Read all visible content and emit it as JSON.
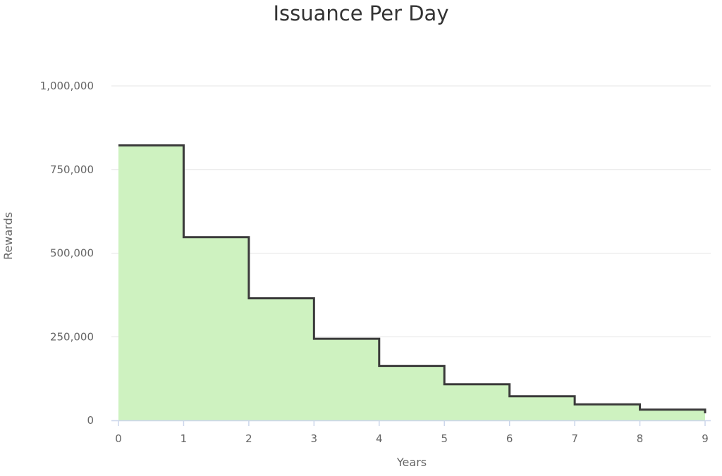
{
  "chart_data": {
    "type": "area",
    "step": true,
    "title": "Issuance Per Day",
    "xlabel": "Years",
    "ylabel": "Rewards",
    "x_ticks": [
      "0",
      "1",
      "2",
      "3",
      "4",
      "5",
      "6",
      "7",
      "8",
      "9"
    ],
    "y_ticks": [
      {
        "value": 0,
        "label": "0"
      },
      {
        "value": 250000,
        "label": "250,000"
      },
      {
        "value": 500000,
        "label": "500,000"
      },
      {
        "value": 750000,
        "label": "750,000"
      },
      {
        "value": 1000000,
        "label": "1,000,000"
      }
    ],
    "xlim": [
      0,
      9
    ],
    "ylim": [
      0,
      1000000
    ],
    "grid": true,
    "series": [
      {
        "x": [
          0,
          1,
          2,
          3,
          4,
          5,
          6,
          7,
          8,
          9
        ],
        "values": [
          822000,
          548000,
          365000,
          244000,
          163000,
          108000,
          72000,
          48000,
          32000,
          21000
        ]
      }
    ],
    "colors": {
      "fill": "#cef2c0",
      "line": "#3a3a3a",
      "grid": "#e6e6e6",
      "axis": "#ccd6eb"
    }
  }
}
